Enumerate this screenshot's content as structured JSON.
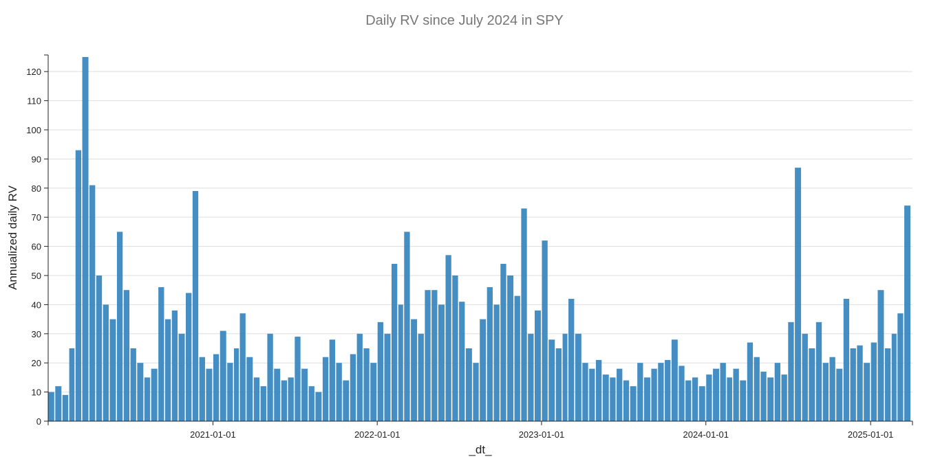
{
  "chart_data": {
    "type": "bar",
    "title": "Daily RV since July 2024 in SPY",
    "xlabel": "_dt_",
    "ylabel": "Annualized daily RV",
    "ylim": [
      0,
      125.7
    ],
    "xlim": [
      "2020-01-01",
      "2025-04-04"
    ],
    "grid": true,
    "color": "#3182bd",
    "x_start": "2020-01-01",
    "x_step": "half-month",
    "y_ticks": [
      0,
      10,
      20,
      30,
      40,
      50,
      60,
      70,
      80,
      90,
      100,
      110,
      120
    ],
    "x_ticks": [
      "2021-01-01",
      "2022-01-01",
      "2023-01-01",
      "2024-01-01",
      "2025-01-01"
    ],
    "values": [
      10,
      12,
      9,
      25,
      93,
      125,
      81,
      50,
      40,
      35,
      65,
      45,
      25,
      20,
      15,
      18,
      46,
      35,
      38,
      30,
      44,
      79,
      22,
      18,
      23,
      31,
      20,
      25,
      37,
      22,
      15,
      12,
      30,
      18,
      14,
      15,
      29,
      18,
      12,
      10,
      22,
      28,
      20,
      14,
      23,
      30,
      25,
      20,
      34,
      30,
      54,
      40,
      65,
      35,
      30,
      45,
      45,
      40,
      57,
      50,
      41,
      25,
      20,
      35,
      46,
      40,
      54,
      50,
      43,
      73,
      30,
      38,
      62,
      28,
      25,
      30,
      42,
      30,
      20,
      18,
      21,
      16,
      15,
      18,
      14,
      12,
      20,
      15,
      18,
      20,
      21,
      28,
      19,
      14,
      15,
      12,
      16,
      18,
      20,
      15,
      18,
      14,
      27,
      22,
      17,
      15,
      20,
      16,
      34,
      87,
      30,
      25,
      34,
      20,
      22,
      18,
      42,
      25,
      26,
      20,
      27,
      45,
      25,
      30,
      37,
      74
    ]
  }
}
